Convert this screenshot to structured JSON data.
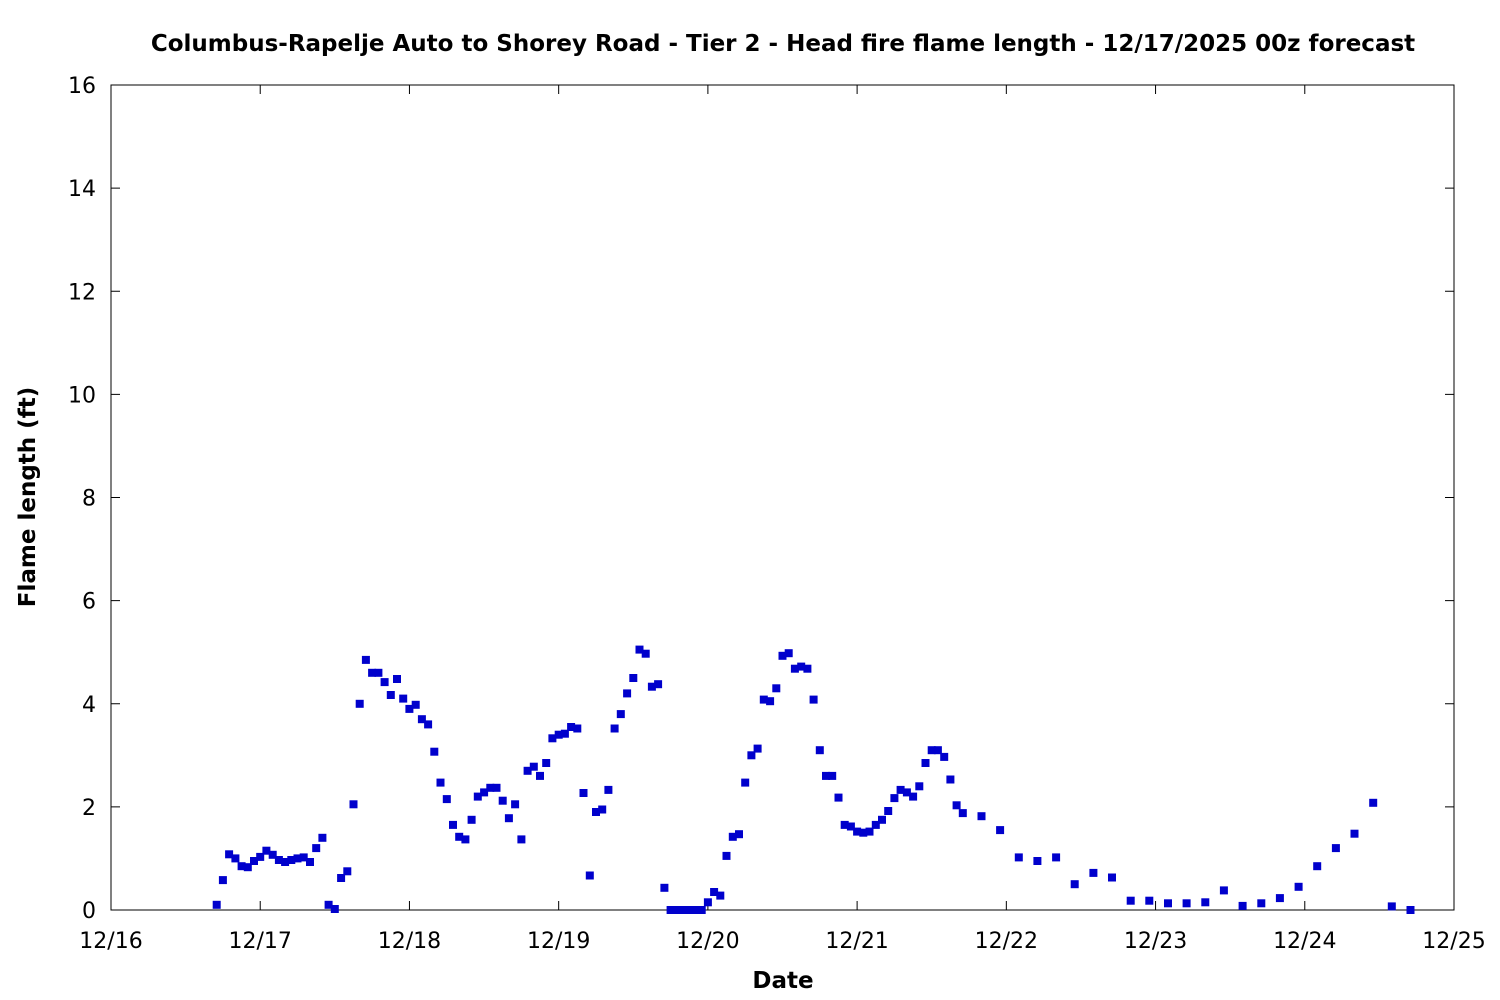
{
  "chart_data": {
    "type": "scatter",
    "title": "Columbus-Rapelje Auto to Shorey Road - Tier 2 - Head fire flame length - 12/17/2025 00z forecast",
    "xlabel": "Date",
    "ylabel": "Flame length (ft)",
    "xlim": [
      "2025-12-16",
      "2025-12-25"
    ],
    "ylim": [
      0,
      16
    ],
    "x_tick_labels": [
      "12/16",
      "12/17",
      "12/18",
      "12/19",
      "12/20",
      "12/21",
      "12/22",
      "12/23",
      "12/24",
      "12/25"
    ],
    "y_tick_labels": [
      "0",
      "2",
      "4",
      "6",
      "8",
      "10",
      "12",
      "14",
      "16"
    ],
    "grid": false,
    "legend": false,
    "marker_color": "#0000cc",
    "marker": "square",
    "series": [
      {
        "points": [
          [
            "2025-12-16T17:00",
            0.1
          ],
          [
            "2025-12-16T18:00",
            0.58
          ],
          [
            "2025-12-16T19:00",
            1.08
          ],
          [
            "2025-12-16T20:00",
            1.0
          ],
          [
            "2025-12-16T21:00",
            0.85
          ],
          [
            "2025-12-16T22:00",
            0.83
          ],
          [
            "2025-12-16T23:00",
            0.95
          ],
          [
            "2025-12-17T00:00",
            1.03
          ],
          [
            "2025-12-17T01:00",
            1.15
          ],
          [
            "2025-12-17T02:00",
            1.07
          ],
          [
            "2025-12-17T03:00",
            0.97
          ],
          [
            "2025-12-17T04:00",
            0.93
          ],
          [
            "2025-12-17T05:00",
            0.97
          ],
          [
            "2025-12-17T06:00",
            1.0
          ],
          [
            "2025-12-17T07:00",
            1.02
          ],
          [
            "2025-12-17T08:00",
            0.93
          ],
          [
            "2025-12-17T09:00",
            1.2
          ],
          [
            "2025-12-17T10:00",
            1.4
          ],
          [
            "2025-12-17T11:00",
            0.1
          ],
          [
            "2025-12-17T12:00",
            0.02
          ],
          [
            "2025-12-17T13:00",
            0.62
          ],
          [
            "2025-12-17T14:00",
            0.75
          ],
          [
            "2025-12-17T15:00",
            2.05
          ],
          [
            "2025-12-17T16:00",
            4.0
          ],
          [
            "2025-12-17T17:00",
            4.85
          ],
          [
            "2025-12-17T18:00",
            4.6
          ],
          [
            "2025-12-17T19:00",
            4.6
          ],
          [
            "2025-12-17T20:00",
            4.42
          ],
          [
            "2025-12-17T21:00",
            4.17
          ],
          [
            "2025-12-17T22:00",
            4.48
          ],
          [
            "2025-12-17T23:00",
            4.1
          ],
          [
            "2025-12-18T00:00",
            3.9
          ],
          [
            "2025-12-18T01:00",
            3.98
          ],
          [
            "2025-12-18T02:00",
            3.7
          ],
          [
            "2025-12-18T03:00",
            3.6
          ],
          [
            "2025-12-18T04:00",
            3.07
          ],
          [
            "2025-12-18T05:00",
            2.47
          ],
          [
            "2025-12-18T06:00",
            2.15
          ],
          [
            "2025-12-18T07:00",
            1.65
          ],
          [
            "2025-12-18T08:00",
            1.42
          ],
          [
            "2025-12-18T09:00",
            1.37
          ],
          [
            "2025-12-18T10:00",
            1.75
          ],
          [
            "2025-12-18T11:00",
            2.2
          ],
          [
            "2025-12-18T12:00",
            2.28
          ],
          [
            "2025-12-18T13:00",
            2.37
          ],
          [
            "2025-12-18T14:00",
            2.37
          ],
          [
            "2025-12-18T15:00",
            2.12
          ],
          [
            "2025-12-18T16:00",
            1.78
          ],
          [
            "2025-12-18T17:00",
            2.05
          ],
          [
            "2025-12-18T18:00",
            1.37
          ],
          [
            "2025-12-18T19:00",
            2.7
          ],
          [
            "2025-12-18T20:00",
            2.78
          ],
          [
            "2025-12-18T21:00",
            2.6
          ],
          [
            "2025-12-18T22:00",
            2.85
          ],
          [
            "2025-12-18T23:00",
            3.33
          ],
          [
            "2025-12-19T00:00",
            3.4
          ],
          [
            "2025-12-19T01:00",
            3.42
          ],
          [
            "2025-12-19T02:00",
            3.55
          ],
          [
            "2025-12-19T03:00",
            3.52
          ],
          [
            "2025-12-19T04:00",
            2.27
          ],
          [
            "2025-12-19T05:00",
            0.67
          ],
          [
            "2025-12-19T06:00",
            1.9
          ],
          [
            "2025-12-19T07:00",
            1.95
          ],
          [
            "2025-12-19T08:00",
            2.33
          ],
          [
            "2025-12-19T09:00",
            3.52
          ],
          [
            "2025-12-19T10:00",
            3.8
          ],
          [
            "2025-12-19T11:00",
            4.2
          ],
          [
            "2025-12-19T12:00",
            4.5
          ],
          [
            "2025-12-19T13:00",
            5.05
          ],
          [
            "2025-12-19T14:00",
            4.97
          ],
          [
            "2025-12-19T15:00",
            4.33
          ],
          [
            "2025-12-19T16:00",
            4.38
          ],
          [
            "2025-12-19T17:00",
            0.43
          ],
          [
            "2025-12-19T18:00",
            0.0
          ],
          [
            "2025-12-19T19:00",
            0.0
          ],
          [
            "2025-12-19T20:00",
            0.0
          ],
          [
            "2025-12-19T21:00",
            0.0
          ],
          [
            "2025-12-19T22:00",
            0.0
          ],
          [
            "2025-12-19T23:00",
            0.0
          ],
          [
            "2025-12-20T00:00",
            0.15
          ],
          [
            "2025-12-20T01:00",
            0.35
          ],
          [
            "2025-12-20T02:00",
            0.28
          ],
          [
            "2025-12-20T03:00",
            1.05
          ],
          [
            "2025-12-20T04:00",
            1.42
          ],
          [
            "2025-12-20T05:00",
            1.47
          ],
          [
            "2025-12-20T06:00",
            2.47
          ],
          [
            "2025-12-20T07:00",
            3.0
          ],
          [
            "2025-12-20T08:00",
            3.13
          ],
          [
            "2025-12-20T09:00",
            4.08
          ],
          [
            "2025-12-20T10:00",
            4.05
          ],
          [
            "2025-12-20T11:00",
            4.3
          ],
          [
            "2025-12-20T12:00",
            4.93
          ],
          [
            "2025-12-20T13:00",
            4.98
          ],
          [
            "2025-12-20T14:00",
            4.68
          ],
          [
            "2025-12-20T15:00",
            4.72
          ],
          [
            "2025-12-20T16:00",
            4.68
          ],
          [
            "2025-12-20T17:00",
            4.08
          ],
          [
            "2025-12-20T18:00",
            3.1
          ],
          [
            "2025-12-20T19:00",
            2.6
          ],
          [
            "2025-12-20T20:00",
            2.6
          ],
          [
            "2025-12-20T21:00",
            2.18
          ],
          [
            "2025-12-20T22:00",
            1.65
          ],
          [
            "2025-12-20T23:00",
            1.62
          ],
          [
            "2025-12-21T00:00",
            1.52
          ],
          [
            "2025-12-21T01:00",
            1.5
          ],
          [
            "2025-12-21T02:00",
            1.52
          ],
          [
            "2025-12-21T03:00",
            1.65
          ],
          [
            "2025-12-21T04:00",
            1.75
          ],
          [
            "2025-12-21T05:00",
            1.92
          ],
          [
            "2025-12-21T06:00",
            2.17
          ],
          [
            "2025-12-21T07:00",
            2.33
          ],
          [
            "2025-12-21T08:00",
            2.28
          ],
          [
            "2025-12-21T09:00",
            2.2
          ],
          [
            "2025-12-21T10:00",
            2.4
          ],
          [
            "2025-12-21T11:00",
            2.85
          ],
          [
            "2025-12-21T12:00",
            3.1
          ],
          [
            "2025-12-21T13:00",
            3.1
          ],
          [
            "2025-12-21T14:00",
            2.97
          ],
          [
            "2025-12-21T15:00",
            2.53
          ],
          [
            "2025-12-21T16:00",
            2.03
          ],
          [
            "2025-12-21T17:00",
            1.88
          ],
          [
            "2025-12-21T20:00",
            1.82
          ],
          [
            "2025-12-21T23:00",
            1.55
          ],
          [
            "2025-12-22T02:00",
            1.02
          ],
          [
            "2025-12-22T05:00",
            0.95
          ],
          [
            "2025-12-22T08:00",
            1.02
          ],
          [
            "2025-12-22T11:00",
            0.5
          ],
          [
            "2025-12-22T14:00",
            0.72
          ],
          [
            "2025-12-22T17:00",
            0.63
          ],
          [
            "2025-12-22T20:00",
            0.18
          ],
          [
            "2025-12-22T23:00",
            0.18
          ],
          [
            "2025-12-23T02:00",
            0.13
          ],
          [
            "2025-12-23T05:00",
            0.13
          ],
          [
            "2025-12-23T08:00",
            0.15
          ],
          [
            "2025-12-23T11:00",
            0.38
          ],
          [
            "2025-12-23T14:00",
            0.08
          ],
          [
            "2025-12-23T17:00",
            0.13
          ],
          [
            "2025-12-23T20:00",
            0.23
          ],
          [
            "2025-12-23T23:00",
            0.45
          ],
          [
            "2025-12-24T02:00",
            0.85
          ],
          [
            "2025-12-24T05:00",
            1.2
          ],
          [
            "2025-12-24T08:00",
            1.48
          ],
          [
            "2025-12-24T11:00",
            2.08
          ],
          [
            "2025-12-24T14:00",
            0.07
          ],
          [
            "2025-12-24T17:00",
            0.0
          ]
        ]
      }
    ]
  }
}
